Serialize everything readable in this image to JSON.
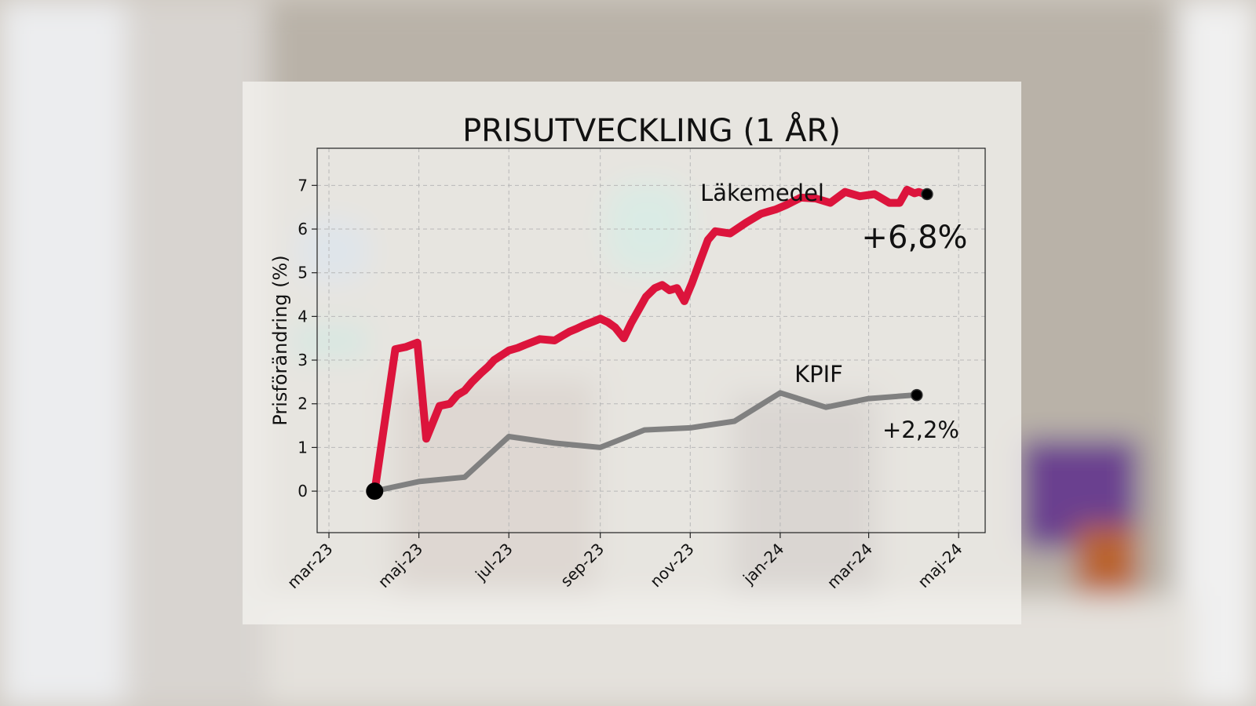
{
  "chart_data": {
    "type": "line",
    "title": "PRISUTVECKLING (1 ÅR)",
    "xlabel": "",
    "ylabel": "Prisförändring (%)",
    "x_ticks": [
      "mar-23",
      "maj-23",
      "jul-23",
      "sep-23",
      "nov-23",
      "jan-24",
      "mar-24",
      "maj-24"
    ],
    "y_ticks": [
      "0",
      "1",
      "2",
      "3",
      "4",
      "5",
      "6",
      "7"
    ],
    "ylim": [
      -0.95,
      7.85
    ],
    "grid": true,
    "colors": {
      "lakemedel": "#dc143c",
      "kpif": "#808080",
      "marker": "#000000"
    },
    "series": [
      {
        "name": "Läkemedel",
        "end_label": "+6,8%",
        "x": [
          "2023-04-01",
          "2023-04-15",
          "2023-04-22",
          "2023-04-30",
          "2023-05-06",
          "2023-05-15",
          "2023-05-22",
          "2023-05-27",
          "2023-06-01",
          "2023-06-06",
          "2023-06-12",
          "2023-06-17",
          "2023-06-21",
          "2023-07-01",
          "2023-07-07",
          "2023-07-12",
          "2023-07-22",
          "2023-08-01",
          "2023-08-06",
          "2023-08-11",
          "2023-08-16",
          "2023-08-21",
          "2023-08-27",
          "2023-09-01",
          "2023-09-06",
          "2023-09-11",
          "2023-09-17",
          "2023-09-22",
          "2023-09-27",
          "2023-10-02",
          "2023-10-08",
          "2023-10-13",
          "2023-10-18",
          "2023-10-23",
          "2023-10-28",
          "2023-11-02",
          "2023-11-08",
          "2023-11-13",
          "2023-11-18",
          "2023-11-28",
          "2023-12-09",
          "2023-12-19",
          "2023-12-24",
          "2023-12-29",
          "2024-01-05",
          "2024-01-15",
          "2024-01-25",
          "2024-02-04",
          "2024-02-14",
          "2024-02-24",
          "2024-03-05",
          "2024-03-15",
          "2024-03-22",
          "2024-03-27",
          "2024-04-01",
          "2024-04-04",
          "2024-04-08"
        ],
        "values": [
          0.0,
          3.25,
          3.3,
          3.4,
          1.2,
          1.95,
          2.0,
          2.2,
          2.3,
          2.5,
          2.7,
          2.85,
          3.0,
          3.22,
          3.28,
          3.35,
          3.48,
          3.45,
          3.55,
          3.65,
          3.72,
          3.8,
          3.88,
          3.95,
          3.87,
          3.75,
          3.5,
          3.85,
          4.15,
          4.45,
          4.65,
          4.72,
          4.6,
          4.65,
          4.35,
          4.75,
          5.3,
          5.75,
          5.95,
          5.9,
          6.15,
          6.35,
          6.4,
          6.45,
          6.55,
          6.72,
          6.7,
          6.6,
          6.85,
          6.75,
          6.8,
          6.6,
          6.6,
          6.9,
          6.82,
          6.85,
          6.8
        ]
      },
      {
        "name": "KPIF",
        "end_label": "+2,2%",
        "x": [
          "2023-04-01",
          "2023-05-01",
          "2023-06-01",
          "2023-07-01",
          "2023-08-01",
          "2023-09-01",
          "2023-10-01",
          "2023-11-01",
          "2023-12-01",
          "2024-01-01",
          "2024-02-01",
          "2024-03-01",
          "2024-04-01"
        ],
        "values": [
          0.0,
          0.22,
          0.32,
          1.25,
          1.1,
          1.0,
          1.4,
          1.45,
          1.6,
          2.25,
          1.92,
          2.12,
          2.2
        ]
      }
    ],
    "x_start": "2023-03-01",
    "x_end": "2024-05-01",
    "xlim": [
      "2023-02-21",
      "2024-05-19"
    ]
  }
}
